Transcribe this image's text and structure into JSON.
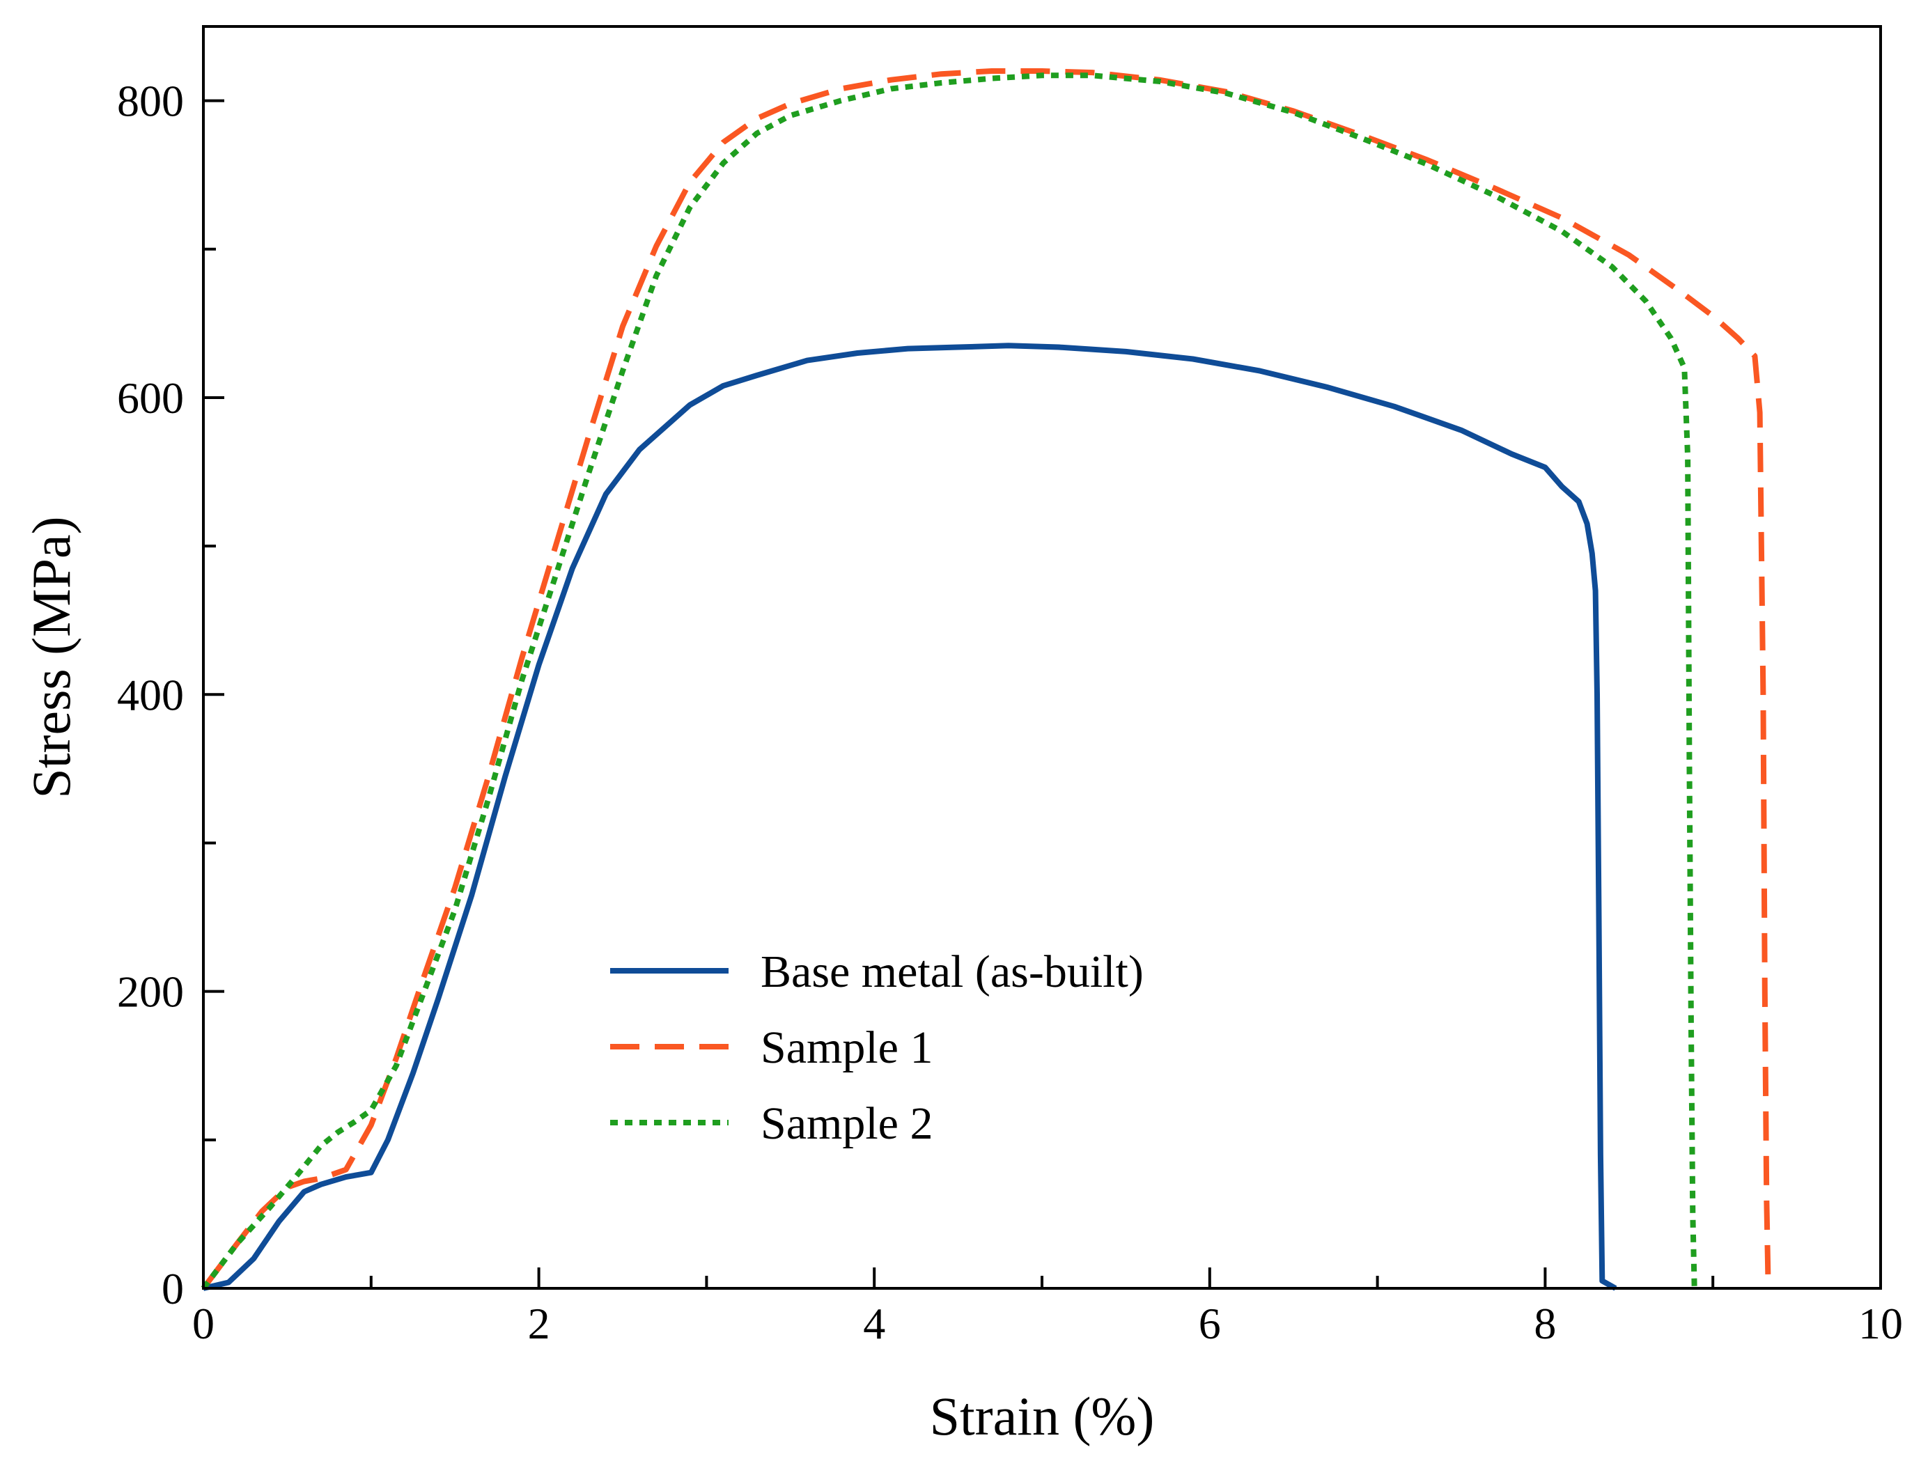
{
  "chart_data": {
    "type": "line",
    "title": "",
    "xlabel": "Strain (%)",
    "ylabel": "Stress (MPa)",
    "xlim": [
      0,
      10
    ],
    "ylim": [
      0,
      850
    ],
    "xticks": [
      0,
      2,
      4,
      6,
      8,
      10
    ],
    "xticks_minor": [
      1,
      3,
      5,
      7,
      9
    ],
    "yticks": [
      0,
      200,
      400,
      600,
      800
    ],
    "yticks_minor": [
      100,
      300,
      500,
      700
    ],
    "grid": false,
    "legend_position": "lower-center",
    "series": [
      {
        "name": "Base metal (as-built)",
        "color": "#0f4c97",
        "style": "solid",
        "x": [
          0,
          0.15,
          0.3,
          0.45,
          0.6,
          0.7,
          0.85,
          1.0,
          1.1,
          1.25,
          1.4,
          1.6,
          1.8,
          2.0,
          2.2,
          2.4,
          2.6,
          2.75,
          2.9,
          3.1,
          3.3,
          3.6,
          3.9,
          4.2,
          4.5,
          4.8,
          5.1,
          5.5,
          5.9,
          6.3,
          6.7,
          7.1,
          7.5,
          7.8,
          8.0,
          8.1,
          8.2,
          8.25,
          8.28,
          8.3,
          8.31,
          8.32,
          8.33,
          8.34,
          8.42
        ],
        "y": [
          0,
          4,
          20,
          45,
          65,
          70,
          75,
          78,
          100,
          145,
          195,
          265,
          345,
          420,
          485,
          535,
          565,
          580,
          595,
          608,
          615,
          625,
          630,
          633,
          634,
          635,
          634,
          631,
          626,
          618,
          607,
          594,
          578,
          562,
          553,
          540,
          530,
          515,
          495,
          470,
          400,
          250,
          90,
          5,
          0
        ]
      },
      {
        "name": "Sample 1",
        "color": "#fa5722",
        "style": "dashed",
        "x": [
          0,
          0.2,
          0.35,
          0.5,
          0.6,
          0.7,
          0.85,
          1.0,
          1.15,
          1.3,
          1.5,
          1.7,
          1.9,
          2.1,
          2.3,
          2.5,
          2.7,
          2.9,
          3.1,
          3.3,
          3.5,
          3.8,
          4.1,
          4.4,
          4.7,
          5.0,
          5.3,
          5.7,
          6.1,
          6.5,
          6.9,
          7.3,
          7.7,
          8.1,
          8.5,
          8.8,
          9.0,
          9.15,
          9.25,
          9.28,
          9.3,
          9.31,
          9.32,
          9.33
        ],
        "y": [
          0,
          30,
          52,
          68,
          72,
          74,
          80,
          110,
          155,
          205,
          270,
          345,
          425,
          500,
          575,
          648,
          702,
          745,
          772,
          788,
          798,
          808,
          814,
          818,
          820,
          820,
          819,
          814,
          806,
          793,
          777,
          760,
          741,
          721,
          696,
          672,
          655,
          640,
          628,
          590,
          400,
          200,
          60,
          0
        ]
      },
      {
        "name": "Sample 2",
        "color": "#1f9e1f",
        "style": "dotted",
        "x": [
          0,
          0.2,
          0.4,
          0.55,
          0.7,
          0.8,
          0.9,
          1.0,
          1.15,
          1.3,
          1.5,
          1.7,
          1.9,
          2.1,
          2.3,
          2.5,
          2.7,
          2.9,
          3.1,
          3.3,
          3.5,
          3.8,
          4.1,
          4.4,
          4.7,
          5.0,
          5.3,
          5.7,
          6.1,
          6.5,
          6.9,
          7.3,
          7.7,
          8.1,
          8.4,
          8.6,
          8.75,
          8.83,
          8.85,
          8.86,
          8.87,
          8.88,
          8.89
        ],
        "y": [
          0,
          30,
          55,
          75,
          96,
          105,
          112,
          120,
          150,
          195,
          255,
          330,
          410,
          480,
          550,
          618,
          682,
          728,
          758,
          778,
          790,
          800,
          808,
          812,
          815,
          817,
          817,
          813,
          805,
          792,
          775,
          757,
          736,
          712,
          688,
          665,
          640,
          620,
          560,
          350,
          180,
          50,
          0
        ]
      }
    ]
  }
}
